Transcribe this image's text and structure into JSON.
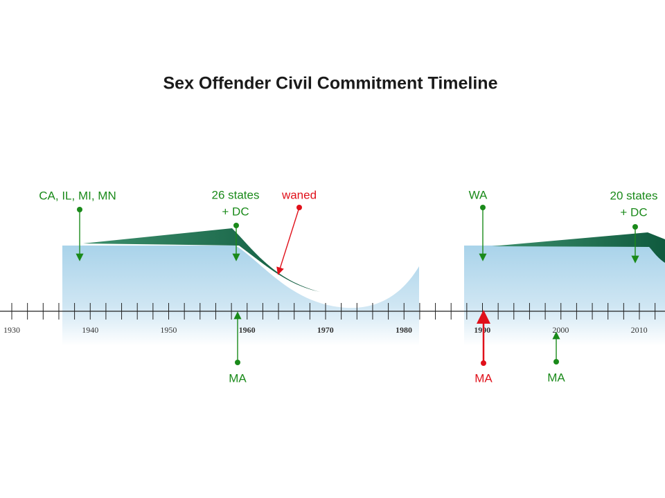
{
  "title": "Sex Offender Civil Commitment Timeline",
  "axis": {
    "labels": [
      "1930",
      "1940",
      "1950",
      "1960",
      "1970",
      "1980",
      "1990",
      "2000",
      "2010"
    ]
  },
  "annotations_above": [
    {
      "lines": [
        "CA, IL, MI, MN"
      ]
    },
    {
      "lines": [
        "26 states",
        "+ DC"
      ]
    },
    {
      "lines": [
        "waned"
      ]
    },
    {
      "lines": [
        "WA"
      ]
    },
    {
      "lines": [
        "20 states",
        "+ DC"
      ]
    }
  ],
  "annotations_below": [
    {
      "lines": [
        "MA"
      ]
    },
    {
      "lines": [
        "MA"
      ]
    },
    {
      "lines": [
        "MA"
      ]
    }
  ]
}
